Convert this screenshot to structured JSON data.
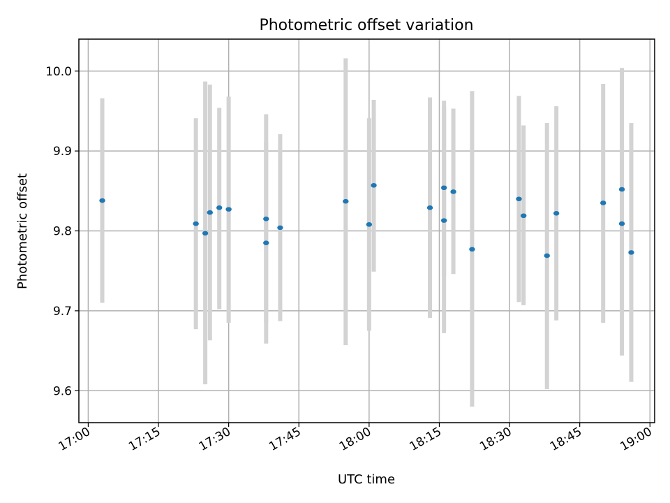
{
  "chart_data": {
    "type": "scatter",
    "title": "Photometric offset variation",
    "xlabel": "UTC time",
    "ylabel": "Photometric offset",
    "x_tick_labels": [
      "17:00",
      "17:15",
      "17:30",
      "17:45",
      "18:00",
      "18:15",
      "18:30",
      "18:45",
      "19:00"
    ],
    "y_ticks": [
      9.6,
      9.7,
      9.8,
      9.9,
      10.0
    ],
    "y_tick_labels": [
      "9.6",
      "9.7",
      "9.8",
      "9.9",
      "10.0"
    ],
    "xlim": [
      "16:58",
      "19:01"
    ],
    "ylim": [
      9.56,
      10.04
    ],
    "grid": true,
    "colors": {
      "point": "#1f77b4",
      "errorbar": "#d3d3d3"
    },
    "series": [
      {
        "x": [
          "17:03",
          "17:23",
          "17:25",
          "17:26",
          "17:28",
          "17:30",
          "17:38",
          "17:38",
          "17:41",
          "17:55",
          "18:00",
          "18:01",
          "18:13",
          "18:16",
          "18:16",
          "18:18",
          "18:22",
          "18:32",
          "18:33",
          "18:38",
          "18:40",
          "18:50",
          "18:54",
          "18:54",
          "18:56"
        ],
        "y": [
          9.838,
          9.809,
          9.797,
          9.823,
          9.829,
          9.827,
          9.815,
          9.785,
          9.804,
          9.837,
          9.808,
          9.857,
          9.829,
          9.854,
          9.813,
          9.849,
          9.777,
          9.84,
          9.819,
          9.769,
          9.822,
          9.835,
          9.852,
          9.809,
          9.773
        ],
        "y_low": [
          9.71,
          9.677,
          9.608,
          9.663,
          9.702,
          9.685,
          9.685,
          9.659,
          9.687,
          9.657,
          9.675,
          9.749,
          9.691,
          9.672,
          9.743,
          9.746,
          9.58,
          9.711,
          9.707,
          9.602,
          9.688,
          9.685,
          9.701,
          9.644,
          9.611
        ],
        "y_high": [
          9.966,
          9.941,
          9.987,
          9.983,
          9.954,
          9.968,
          9.946,
          9.911,
          9.921,
          10.016,
          9.941,
          9.964,
          9.967,
          9.963,
          9.955,
          9.953,
          9.975,
          9.969,
          9.932,
          9.935,
          9.956,
          9.984,
          10.004,
          9.975,
          9.935
        ]
      }
    ]
  }
}
